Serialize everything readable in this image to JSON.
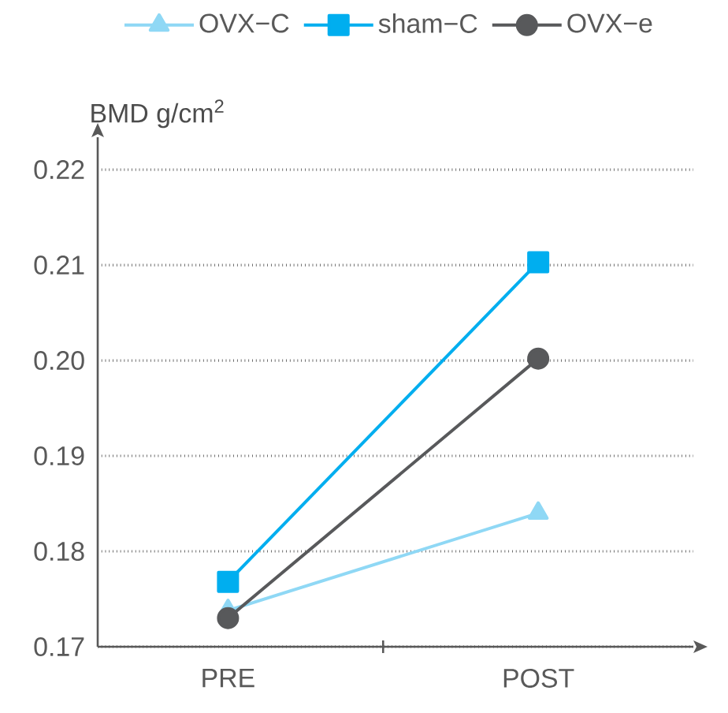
{
  "chart_data": {
    "type": "line",
    "ylabel": "BMD g/cm$^{2}$",
    "categories": [
      "PRE",
      "POST"
    ],
    "series": [
      {
        "name": "OVX−C",
        "color": "#8fd8f5",
        "marker": "triangle",
        "values": [
          0.1738,
          0.184
        ]
      },
      {
        "name": "sham−C",
        "color": "#00aeef",
        "marker": "square",
        "values": [
          0.1768,
          0.2103
        ]
      },
      {
        "name": "OVX−e",
        "color": "#58595b",
        "marker": "circle",
        "values": [
          0.173,
          0.2002
        ]
      }
    ],
    "ylim": [
      0.17,
      0.2234
    ],
    "yticks": [
      0.17,
      0.18,
      0.19,
      {
        "value": 0.2,
        "label": "0.20"
      },
      0.21,
      0.22
    ],
    "grid": "y",
    "legend": "top",
    "line_style": "solid"
  }
}
